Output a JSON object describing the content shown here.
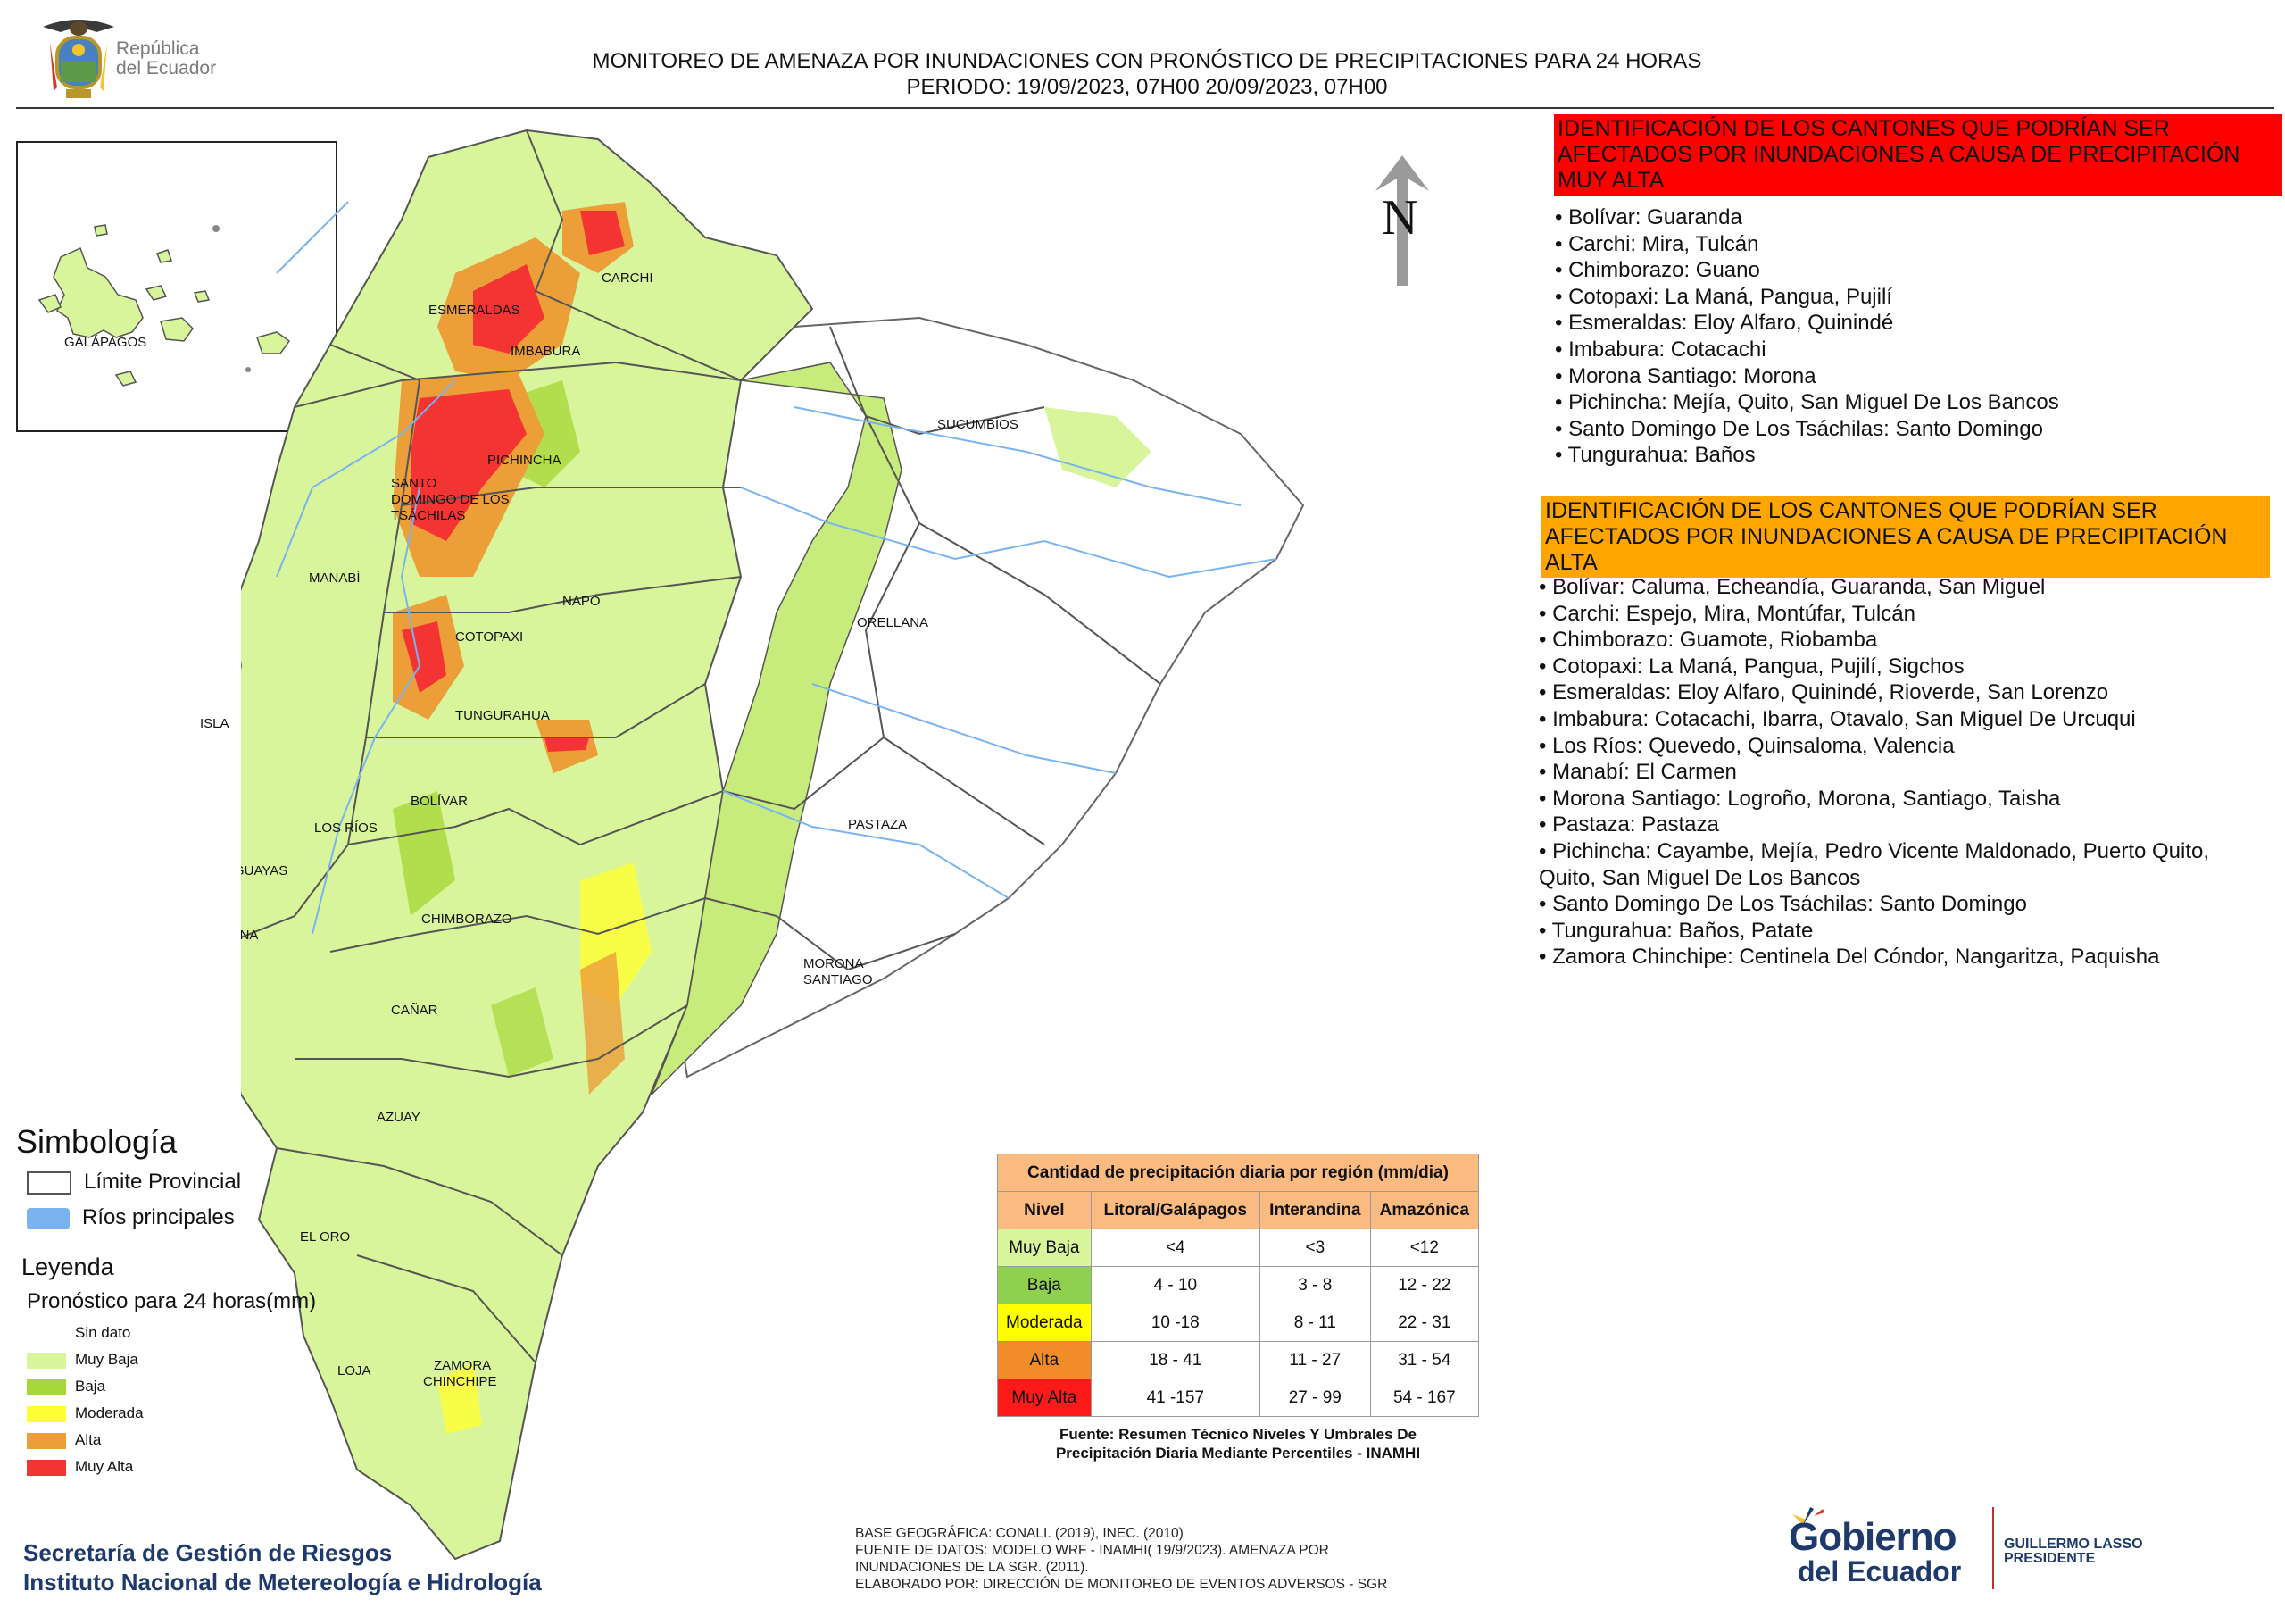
{
  "header": {
    "line1": "MONITOREO DE AMENAZA POR INUNDACIONES  CON PRONÓSTICO DE  PRECIPITACIONES PARA 24 HORAS",
    "line2": "PERIODO: 19/09/2023, 07H00 20/09/2023, 07H00",
    "logo_text_1": "República",
    "logo_text_2": "del Ecuador"
  },
  "map": {
    "north_label": "N",
    "inset_label": "GALÁPAGOS",
    "island_label": "ISLA",
    "provinces": [
      "ESMERALDAS",
      "CARCHI",
      "IMBABURA",
      "SUCUMBÍOS",
      "PICHINCHA",
      "SANTO",
      "DOMINGO DE LOS",
      "TSÁCHILAS",
      "MANABÍ",
      "NAPO",
      "ORELLANA",
      "COTOPAXI",
      "TUNGURAHUA",
      "BOLÍVAR",
      "LOS RÍOS",
      "GUAYAS",
      "PASTAZA",
      "SANTA ELENA",
      "CHIMBORAZO",
      "MORONA",
      "SANTIAGO",
      "CAÑAR",
      "AZUAY",
      "EL ORO",
      "ZAMORA",
      "CHINCHIPE",
      "LOJA"
    ]
  },
  "red_section": {
    "title": "IDENTIFICACIÓN DE LOS CANTONES QUE PODRÍAN SER AFECTADOS POR INUNDACIONES  A CAUSA DE PRECIPITACIÓN MUY ALTA",
    "items": [
      "• Bolívar: Guaranda",
      "• Carchi: Mira, Tulcán",
      "• Chimborazo: Guano",
      "• Cotopaxi: La Maná, Pangua, Pujilí",
      "• Esmeraldas: Eloy Alfaro, Quinindé",
      "• Imbabura: Cotacachi",
      "• Morona Santiago: Morona",
      "• Pichincha: Mejía, Quito, San Miguel De Los Bancos",
      "• Santo Domingo De Los Tsáchilas: Santo Domingo",
      "• Tungurahua: Baños"
    ]
  },
  "orange_section": {
    "title": "IDENTIFICACIÓN DE LOS CANTONES QUE  PODRÍAN SER AFECTADOS POR INUNDACIONES  A CAUSA DE PRECIPITACIÓN ALTA",
    "items": [
      "• Bolívar: Caluma, Echeandía, Guaranda, San Miguel",
      "• Carchi: Espejo, Mira, Montúfar, Tulcán",
      "• Chimborazo: Guamote, Riobamba",
      "• Cotopaxi: La Maná, Pangua, Pujilí, Sigchos",
      "• Esmeraldas: Eloy Alfaro, Quinindé, Rioverde, San Lorenzo",
      "• Imbabura: Cotacachi, Ibarra, Otavalo, San Miguel De Urcuqui",
      "• Los Ríos: Quevedo, Quinsaloma, Valencia",
      "• Manabí: El Carmen",
      "• Morona Santiago: Logroño, Morona, Santiago, Taisha",
      "• Pastaza: Pastaza",
      "• Pichincha: Cayambe, Mejía, Pedro Vicente Maldonado, Puerto Quito,",
      "Quito, San Miguel De Los Bancos",
      "• Santo Domingo De Los Tsáchilas: Santo Domingo",
      "• Tungurahua: Baños, Patate",
      "• Zamora Chinchipe: Centinela Del Cóndor, Nangaritza, Paquisha"
    ]
  },
  "simbologia": {
    "title": "Simbología",
    "items": [
      {
        "label": "Límite Provincial",
        "color": "#ffffff",
        "border": "#555555"
      },
      {
        "label": "Ríos principales",
        "color": "#7ab4f0",
        "border": "#7ab4f0"
      }
    ]
  },
  "leyenda": {
    "title": "Leyenda",
    "subtitle": "Pronóstico para 24 horas(mm)",
    "items": [
      {
        "label": "Sin dato",
        "color": "#ffffff"
      },
      {
        "label": "Muy Baja",
        "color": "#d9f59b"
      },
      {
        "label": "Baja",
        "color": "#a7d83a"
      },
      {
        "label": "Moderada",
        "color": "#ffff33"
      },
      {
        "label": "Alta",
        "color": "#ec9e38"
      },
      {
        "label": "Muy Alta",
        "color": "#f43333"
      }
    ]
  },
  "precip_table": {
    "title": "Cantidad de precipitación diaria por región (mm/dia)",
    "headers": [
      "Nivel",
      "Litoral/Galápagos",
      "Interandina",
      "Amazónica"
    ],
    "rows": [
      {
        "level": "Muy Baja",
        "color": "#d9f59b",
        "values": [
          "<4",
          "<3",
          "<12"
        ]
      },
      {
        "level": "Baja",
        "color": "#8fd14f",
        "values": [
          "4 - 10",
          "3 - 8",
          "12 - 22"
        ]
      },
      {
        "level": "Moderada",
        "color": "#ffff00",
        "values": [
          "10 -18",
          "8 - 11",
          "22 - 31"
        ]
      },
      {
        "level": "Alta",
        "color": "#f28c28",
        "values": [
          "18 - 41",
          "11 - 27",
          "31 - 54"
        ]
      },
      {
        "level": "Muy Alta",
        "color": "#ff1a1a",
        "values": [
          "41 -157",
          "27 - 99",
          "54 - 167"
        ]
      }
    ],
    "source_1": "Fuente: Resumen Técnico Niveles Y Umbrales De",
    "source_2": "Precipitación Diaria Mediante Percentiles - INAMHI"
  },
  "footer": {
    "org_1": "Secretaría de Gestión de Riesgos",
    "org_2": "Instituto Nacional de Metereología e Hidrología",
    "credits": [
      "BASE GEOGRÁFICA: CONALI. (2019), INEC. (2010)",
      "FUENTE DE DATOS: MODELO WRF - INAMHI( 19/9/2023).  AMENAZA POR",
      "INUNDACIONES DE LA SGR. (2011).",
      "ELABORADO POR: DIRECCIÓN DE MONITOREO DE EVENTOS ADVERSOS - SGR"
    ],
    "gob_1": "Gobierno",
    "gob_2": "del Ecuador",
    "pres_1": "GUILLERMO LASSO",
    "pres_2": "PRESIDENTE"
  }
}
